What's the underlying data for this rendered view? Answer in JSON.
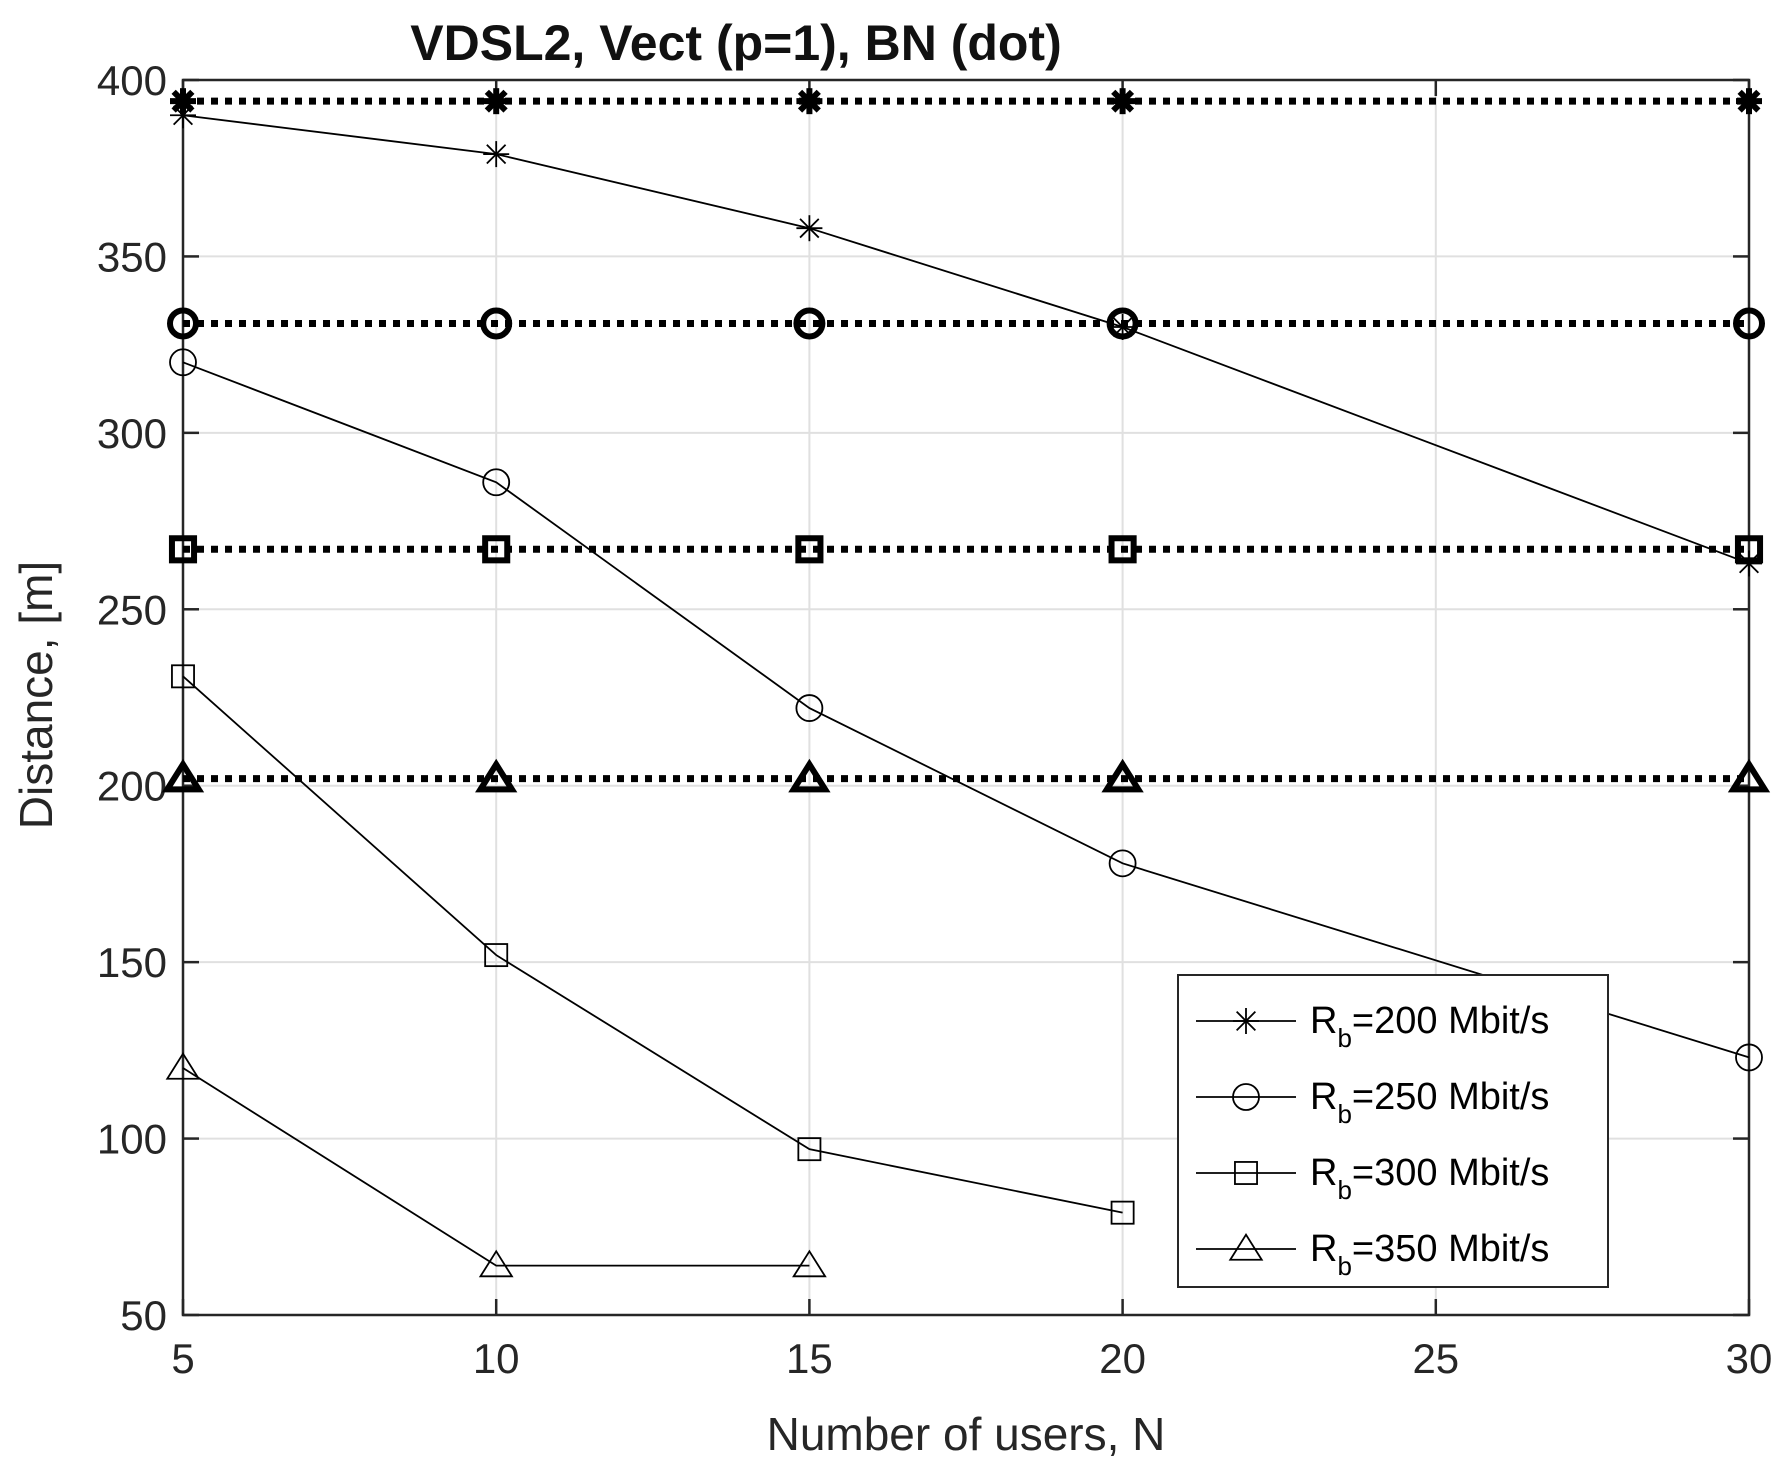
{
  "chart_data": {
    "type": "line",
    "title": "VDSL2, Vect (p=1), BN (dot)",
    "xlabel": "Number of users, N",
    "ylabel": "Distance, [m]",
    "xlim": [
      5,
      30
    ],
    "ylim": [
      50,
      400
    ],
    "xticks": [
      5,
      10,
      15,
      20,
      25,
      30
    ],
    "yticks": [
      50,
      100,
      150,
      200,
      250,
      300,
      350,
      400
    ],
    "grid": true,
    "legend_position": "bottom-right",
    "series": [
      {
        "name": "Rb=200 Mbit/s",
        "legend_base": "R",
        "legend_sub": "b",
        "legend_rest": "=200 Mbit/s",
        "marker": "star",
        "x": [
          5,
          10,
          15,
          20,
          30
        ],
        "values": [
          390,
          379,
          358,
          330,
          263
        ]
      },
      {
        "name": "Rb=250 Mbit/s",
        "legend_base": "R",
        "legend_sub": "b",
        "legend_rest": "=250 Mbit/s",
        "marker": "circle",
        "x": [
          5,
          10,
          15,
          20,
          30
        ],
        "values": [
          320,
          286,
          222,
          178,
          123
        ]
      },
      {
        "name": "Rb=300 Mbit/s",
        "legend_base": "R",
        "legend_sub": "b",
        "legend_rest": "=300 Mbit/s",
        "marker": "square",
        "x": [
          5,
          10,
          15,
          20
        ],
        "values": [
          231,
          152,
          97,
          79
        ]
      },
      {
        "name": "Rb=350 Mbit/s",
        "legend_base": "R",
        "legend_sub": "b",
        "legend_rest": "=350 Mbit/s",
        "marker": "triangle",
        "x": [
          5,
          10,
          15
        ],
        "values": [
          120,
          64,
          64
        ]
      }
    ],
    "bn_series": [
      {
        "name": "BN Rb=200 Mbit/s",
        "marker": "star",
        "x": [
          5,
          10,
          15,
          20,
          30
        ],
        "values": [
          394,
          394,
          394,
          394,
          394
        ]
      },
      {
        "name": "BN Rb=250 Mbit/s",
        "marker": "circle",
        "x": [
          5,
          10,
          15,
          20,
          30
        ],
        "values": [
          331,
          331,
          331,
          331,
          331
        ]
      },
      {
        "name": "BN Rb=300 Mbit/s",
        "marker": "square",
        "x": [
          5,
          10,
          15,
          20,
          30
        ],
        "values": [
          267,
          267,
          267,
          267,
          267
        ]
      },
      {
        "name": "BN Rb=350 Mbit/s",
        "marker": "triangle",
        "x": [
          5,
          10,
          15,
          20,
          30
        ],
        "values": [
          202,
          202,
          202,
          202,
          202
        ]
      }
    ]
  },
  "colors": {
    "line": "#000000",
    "grid": "#e0e0e0",
    "axis": "#262626",
    "background": "#ffffff"
  }
}
